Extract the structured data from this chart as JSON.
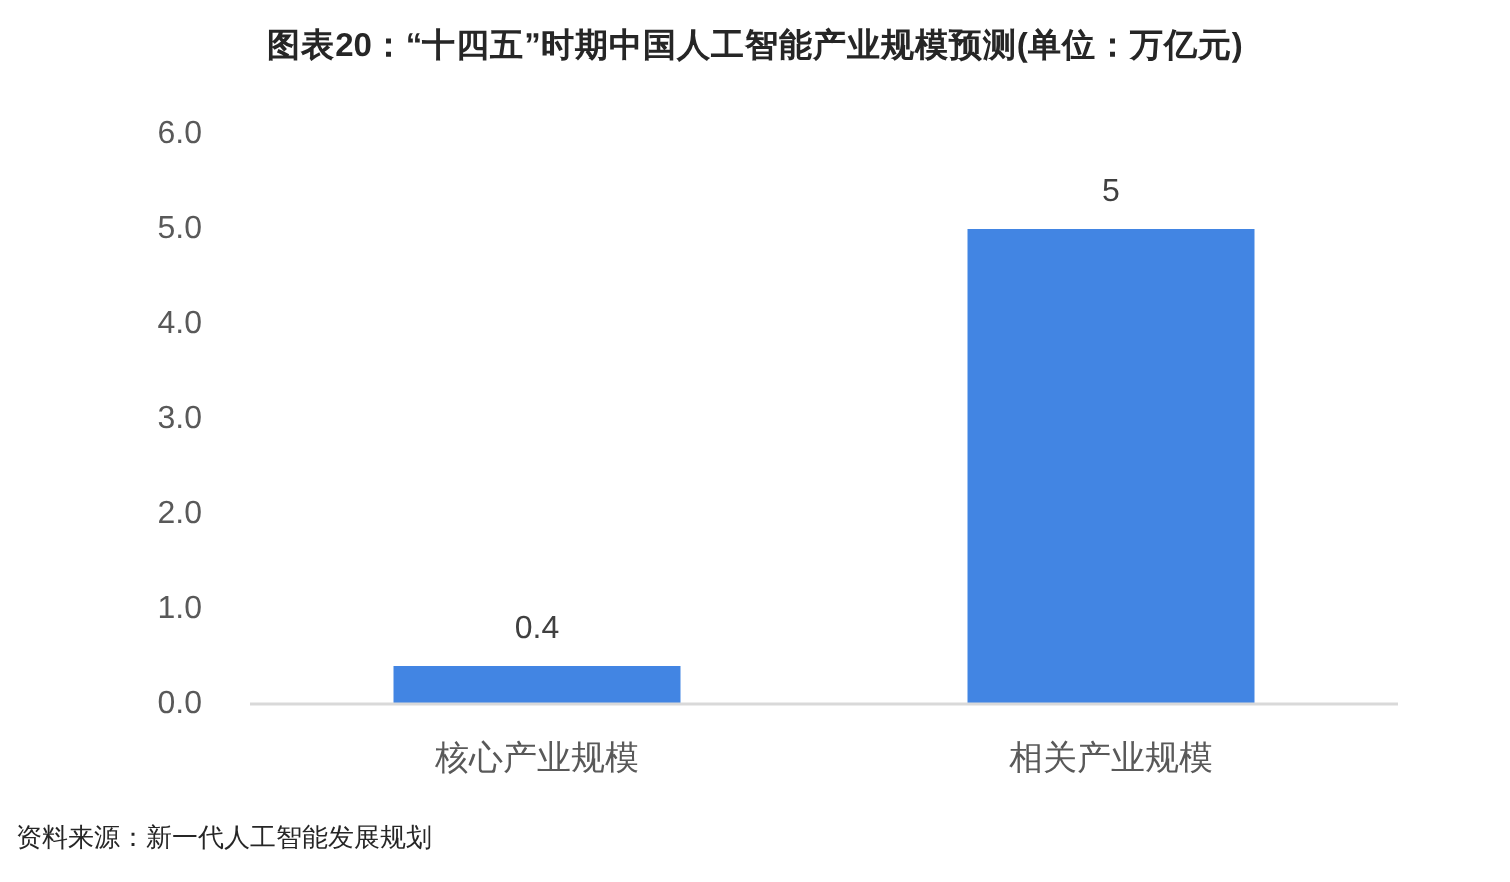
{
  "chart_data": {
    "type": "bar",
    "title": "图表20：“十四五”时期中国人工智能产业规模预测(单位：万亿元)",
    "categories": [
      "核心产业规模",
      "相关产业规模"
    ],
    "values": [
      0.4,
      5
    ],
    "color": "#4285e3",
    "ylim": [
      0,
      6
    ],
    "yticks": [
      {
        "value": 0,
        "label": "0.0"
      },
      {
        "value": 1,
        "label": "1.0"
      },
      {
        "value": 2,
        "label": "2.0"
      },
      {
        "value": 3,
        "label": "3.0"
      },
      {
        "value": 4,
        "label": "4.0"
      },
      {
        "value": 5,
        "label": "5.0"
      },
      {
        "value": 6,
        "label": "6.0"
      }
    ],
    "data_labels": true,
    "grid": false,
    "annotations": [
      "资料来源：新一代人工智能发展规划"
    ]
  }
}
